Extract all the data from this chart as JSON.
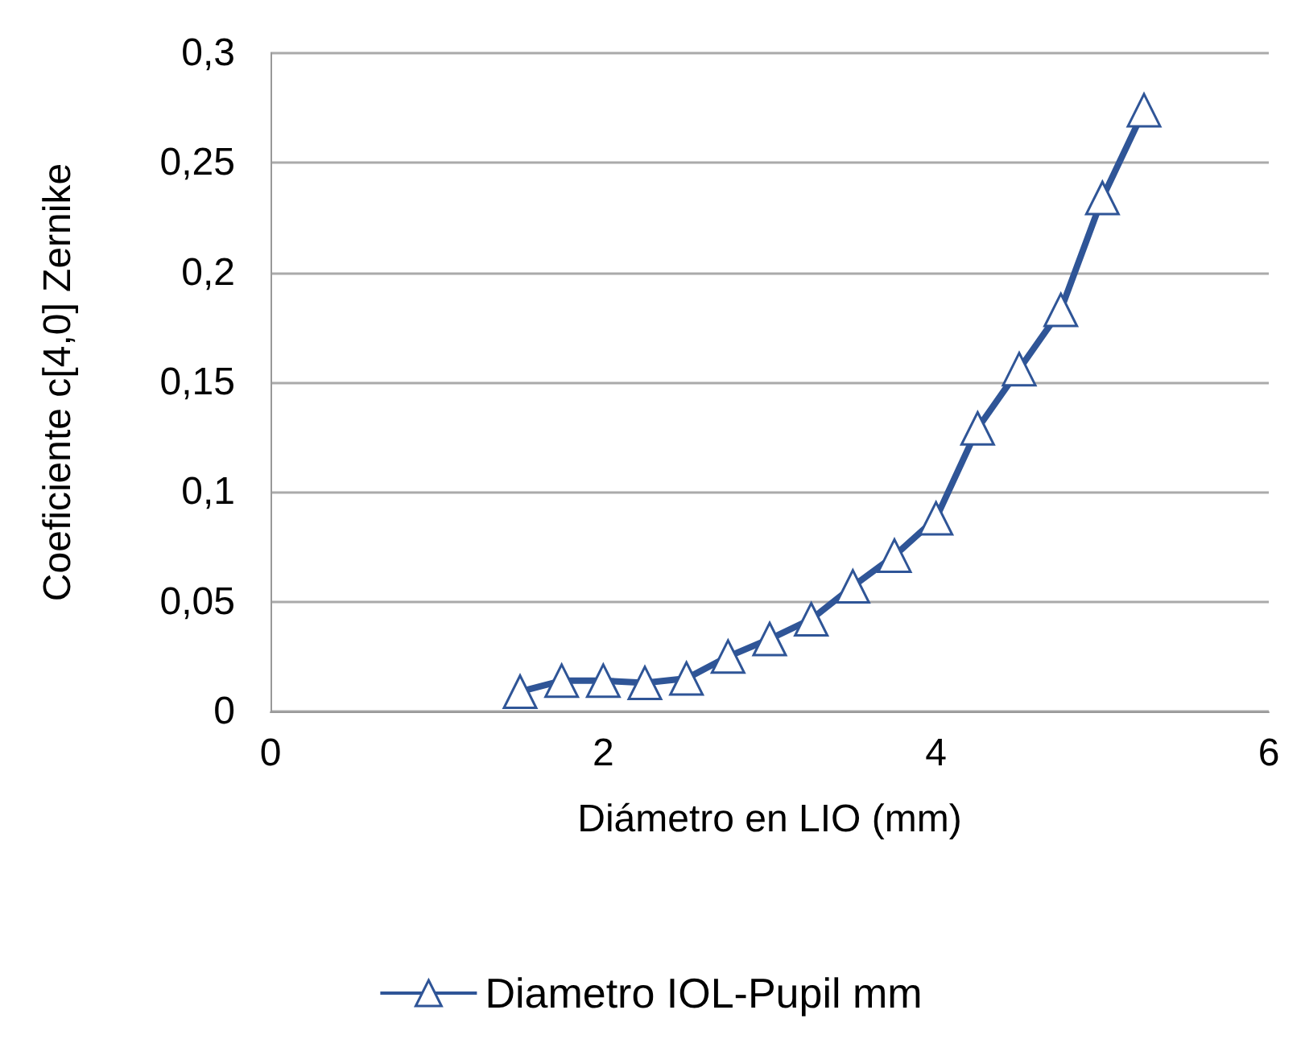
{
  "chart_data": {
    "type": "line",
    "xlabel": "Diámetro en LIO (mm)",
    "ylabel": "Coeficiente c[4,0] Zernike",
    "x": [
      1.5,
      1.75,
      2,
      2.25,
      2.5,
      2.75,
      3,
      3.25,
      3.5,
      3.75,
      4,
      4.25,
      4.5,
      4.75,
      5,
      5.25
    ],
    "series": [
      {
        "name": "Diametro IOL-Pupil mm",
        "color": "#2f5597",
        "values": [
          0.009,
          0.014,
          0.014,
          0.013,
          0.015,
          0.025,
          0.033,
          0.042,
          0.057,
          0.071,
          0.088,
          0.129,
          0.156,
          0.183,
          0.234,
          0.274
        ]
      }
    ],
    "xlim": [
      0,
      6
    ],
    "xticks": [
      0,
      2,
      4,
      6
    ],
    "ylim": [
      0,
      0.3
    ],
    "yticks": [
      0,
      {
        "value": 0.05,
        "label": "0,05"
      },
      {
        "value": 0.1,
        "label": "0,1"
      },
      {
        "value": 0.15,
        "label": "0,15"
      },
      {
        "value": 0.2,
        "label": "0,2"
      },
      {
        "value": 0.25,
        "label": "0,25"
      },
      {
        "value": 0.3,
        "label": "0,3"
      }
    ],
    "grid": "y",
    "legend": "bottom",
    "marker": "triangle",
    "line_style": "solid"
  }
}
